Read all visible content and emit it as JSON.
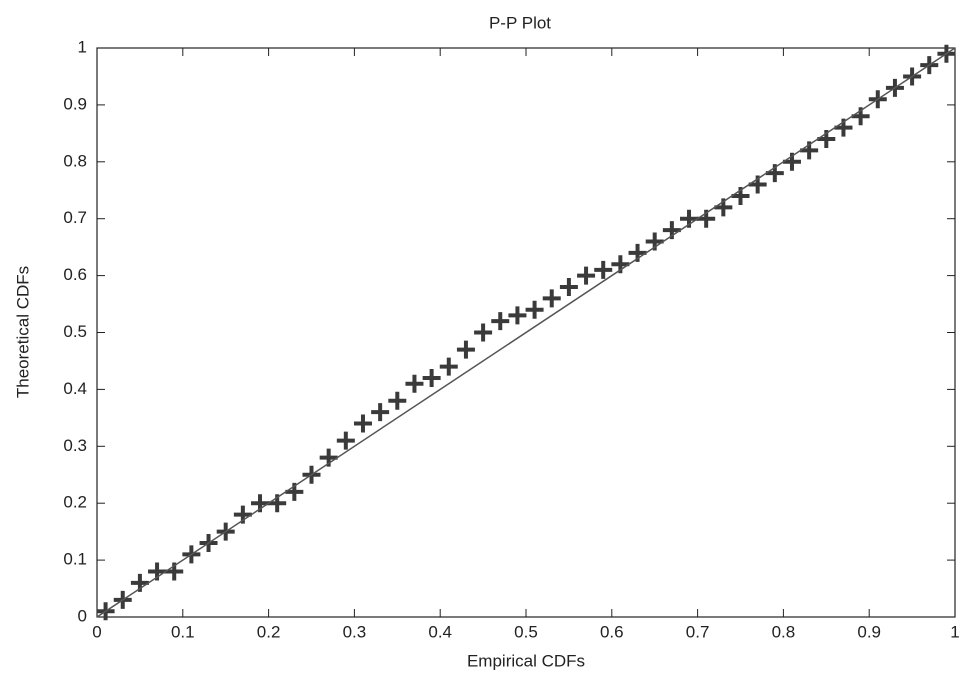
{
  "chart_data": {
    "type": "scatter",
    "title": "P-P Plot",
    "x_label": "Empirical CDFs",
    "y_label": "Theoretical CDFs",
    "x": [
      0.01,
      0.03,
      0.05,
      0.07,
      0.09,
      0.11,
      0.13,
      0.15,
      0.17,
      0.19,
      0.21,
      0.23,
      0.25,
      0.27,
      0.29,
      0.31,
      0.33,
      0.35,
      0.37,
      0.39,
      0.41,
      0.43,
      0.45,
      0.47,
      0.49,
      0.51,
      0.53,
      0.55,
      0.57,
      0.59,
      0.61,
      0.63,
      0.65,
      0.67,
      0.69,
      0.71,
      0.73,
      0.75,
      0.77,
      0.79,
      0.81,
      0.83,
      0.85,
      0.87,
      0.89,
      0.91,
      0.93,
      0.95,
      0.97,
      0.99
    ],
    "y": [
      0.01,
      0.03,
      0.06,
      0.08,
      0.08,
      0.11,
      0.13,
      0.15,
      0.18,
      0.2,
      0.2,
      0.22,
      0.25,
      0.28,
      0.31,
      0.34,
      0.36,
      0.38,
      0.41,
      0.42,
      0.44,
      0.47,
      0.5,
      0.52,
      0.53,
      0.54,
      0.56,
      0.58,
      0.6,
      0.61,
      0.62,
      0.64,
      0.66,
      0.68,
      0.7,
      0.7,
      0.72,
      0.74,
      0.76,
      0.78,
      0.8,
      0.82,
      0.84,
      0.86,
      0.88,
      0.91,
      0.93,
      0.95,
      0.97,
      0.99
    ],
    "color": "#3a3a3a",
    "reference_line": {
      "x": [
        0,
        1
      ],
      "y": [
        0,
        1
      ],
      "color": "#555555"
    },
    "xlim": [
      0,
      1
    ],
    "ylim": [
      0,
      1
    ],
    "xticks": [
      0,
      0.1,
      0.2,
      0.3,
      0.4,
      0.5,
      0.6,
      0.7,
      0.8,
      0.9,
      1
    ],
    "yticks": [
      0,
      0.1,
      0.2,
      0.3,
      0.4,
      0.5,
      0.6,
      0.7,
      0.8,
      0.9,
      1
    ]
  }
}
